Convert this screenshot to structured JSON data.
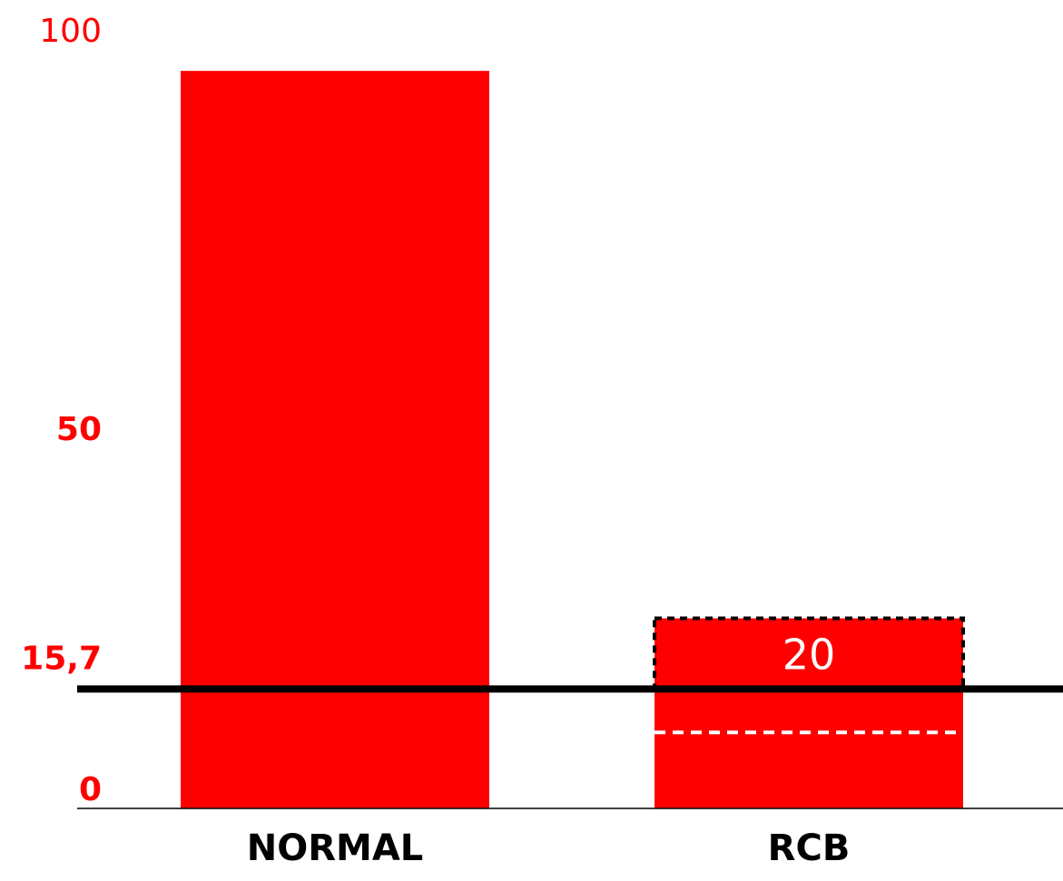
{
  "chart_data": {
    "type": "bar",
    "title": "",
    "xlabel": "",
    "ylabel": "",
    "categories": [
      "NORMAL",
      "RCB"
    ],
    "values": [
      97,
      16
    ],
    "ylim": [
      0,
      100
    ],
    "y_ticks": [
      {
        "value": 0,
        "label": "0"
      },
      {
        "value": 15.7,
        "label": "15,7"
      },
      {
        "value": 50,
        "label": "50"
      },
      {
        "value": 100,
        "label": "100"
      }
    ],
    "bar_color": "#ff0000",
    "reference_line": {
      "value": 15.7,
      "color": "#000000"
    },
    "dashed_box": {
      "category": "RCB",
      "from": 15.7,
      "to": 25,
      "label": "20"
    },
    "dashed_inner_line": {
      "category": "RCB",
      "value": 10,
      "color": "#ffffff"
    },
    "grid": false
  }
}
